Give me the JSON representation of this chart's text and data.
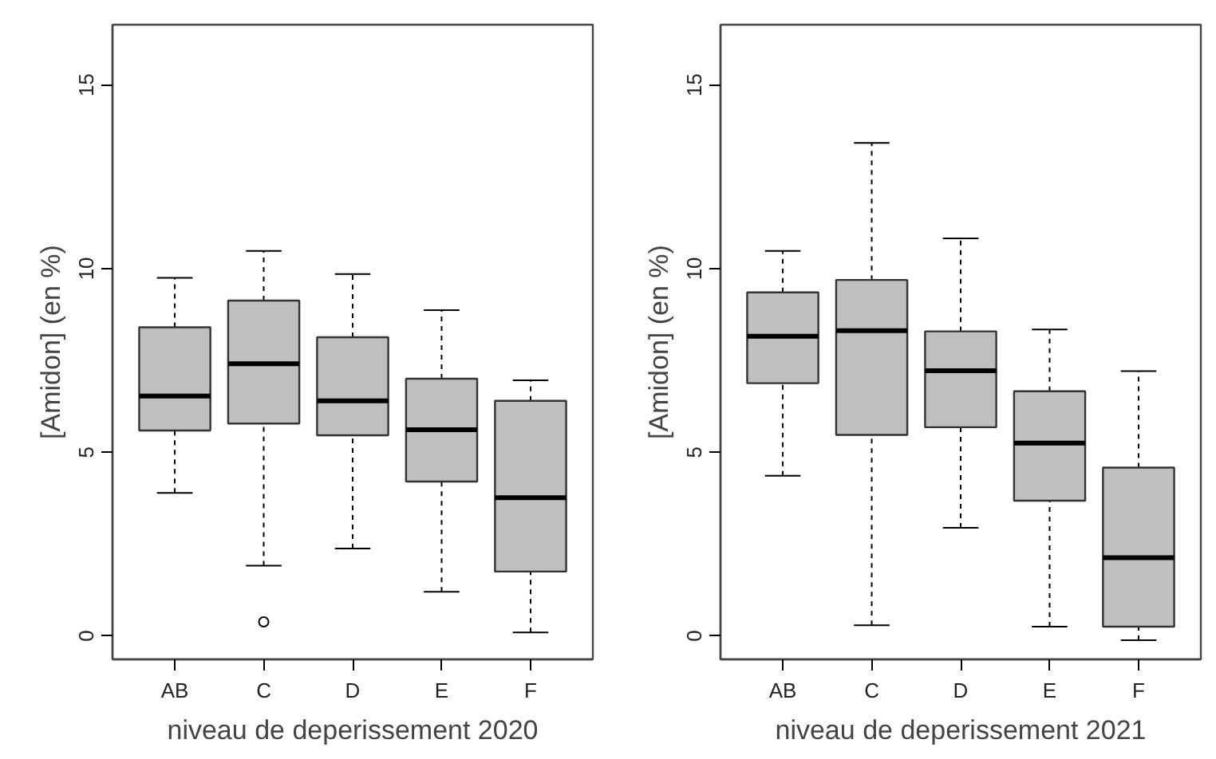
{
  "chart_data": [
    {
      "type": "box",
      "xlabel": "niveau de deperissement 2020",
      "ylabel": "[Amidon] (en %)",
      "categories": [
        "AB",
        "C",
        "D",
        "E",
        "F"
      ],
      "ylim": [
        -0.64,
        16.64
      ],
      "yticks": [
        0,
        5,
        10,
        15
      ],
      "series": [
        {
          "color": "#bfbfbf",
          "boxes": [
            {
              "low": 3.89,
              "q1": 5.59,
              "median": 6.53,
              "q3": 8.4,
              "high": 9.75
            },
            {
              "low": 1.91,
              "q1": 5.78,
              "median": 7.41,
              "q3": 9.13,
              "high": 10.48,
              "outliers": [
                0.38
              ]
            },
            {
              "low": 2.38,
              "q1": 5.46,
              "median": 6.4,
              "q3": 8.13,
              "high": 9.85
            },
            {
              "low": 1.2,
              "q1": 4.2,
              "median": 5.61,
              "q3": 7.0,
              "high": 8.87
            },
            {
              "low": 0.09,
              "q1": 1.75,
              "median": 3.76,
              "q3": 6.4,
              "high": 6.96
            }
          ]
        }
      ]
    },
    {
      "type": "box",
      "xlabel": "niveau de deperissement 2021",
      "ylabel": "[Amidon] (en %)",
      "categories": [
        "AB",
        "C",
        "D",
        "E",
        "F"
      ],
      "ylim": [
        -0.64,
        16.64
      ],
      "yticks": [
        0,
        5,
        10,
        15
      ],
      "series": [
        {
          "color": "#bfbfbf",
          "boxes": [
            {
              "low": 4.36,
              "q1": 6.88,
              "median": 8.16,
              "q3": 9.35,
              "high": 10.48
            },
            {
              "low": 0.29,
              "q1": 5.47,
              "median": 8.31,
              "q3": 9.69,
              "high": 13.42
            },
            {
              "low": 2.94,
              "q1": 5.68,
              "median": 7.22,
              "q3": 8.29,
              "high": 10.82
            },
            {
              "low": 0.25,
              "q1": 3.68,
              "median": 5.25,
              "q3": 6.66,
              "high": 8.34
            },
            {
              "low": -0.12,
              "q1": 0.25,
              "median": 2.13,
              "q3": 4.58,
              "high": 7.21
            }
          ]
        }
      ]
    }
  ]
}
